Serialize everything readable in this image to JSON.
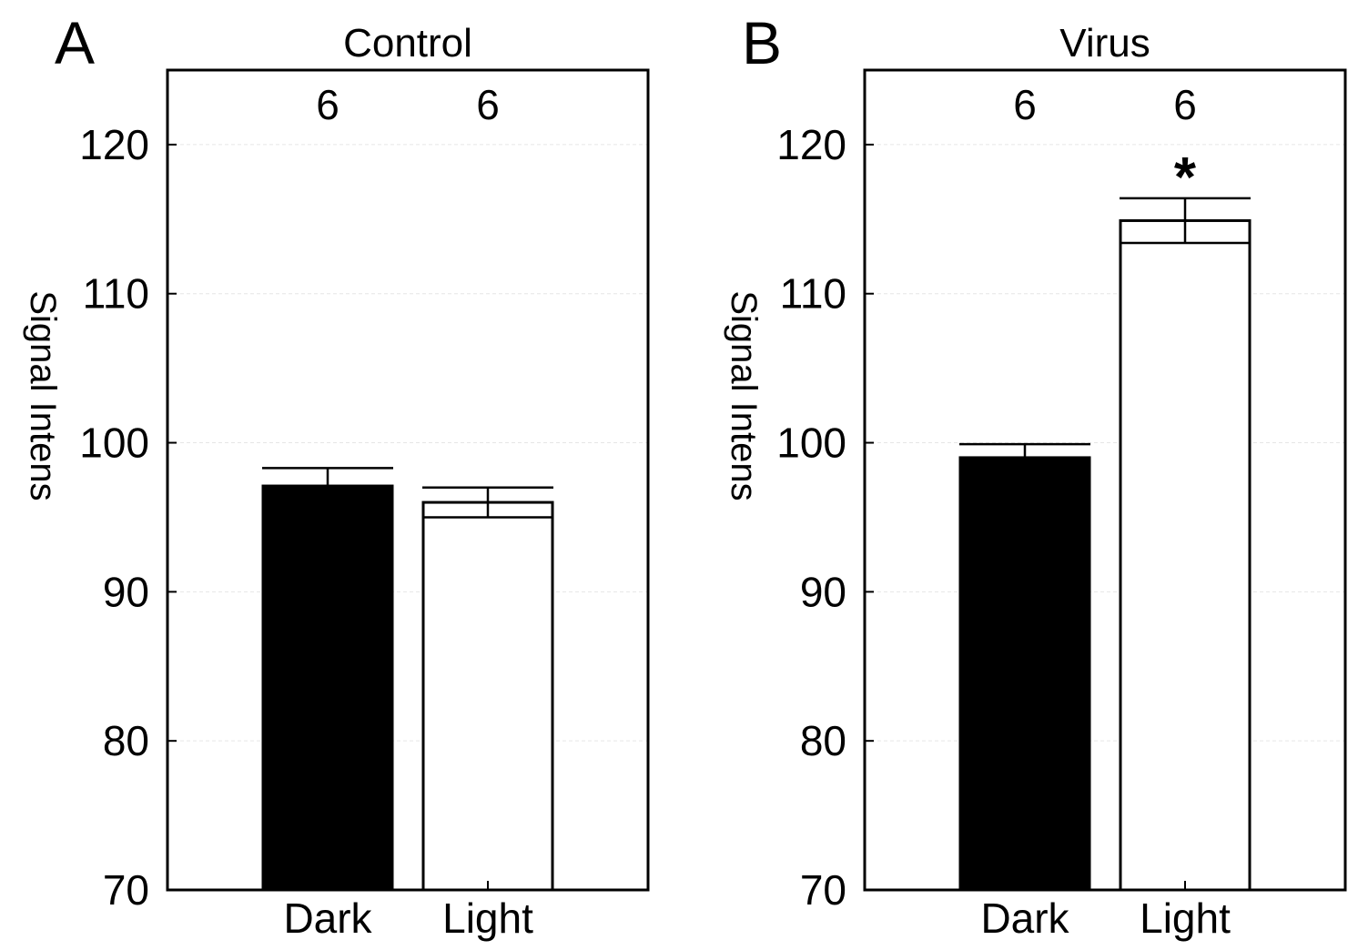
{
  "chart_data": [
    {
      "type": "bar",
      "panel_label": "A",
      "title": "Control",
      "ylabel": "Signal Intens",
      "xlabel": "",
      "ylim": [
        70,
        125
      ],
      "yticks": [
        70,
        80,
        90,
        100,
        110,
        120
      ],
      "grid": true,
      "categories": [
        "Dark",
        "Light"
      ],
      "values": [
        97.1,
        96.0
      ],
      "errors": [
        1.2,
        1.0
      ],
      "n": [
        "6",
        "6"
      ],
      "significance": [
        "",
        ""
      ],
      "bar_colors": [
        "#000000",
        "#ffffff"
      ]
    },
    {
      "type": "bar",
      "panel_label": "B",
      "title": "Virus",
      "ylabel": "Signal Intens",
      "xlabel": "",
      "ylim": [
        70,
        125
      ],
      "yticks": [
        70,
        80,
        90,
        100,
        110,
        120
      ],
      "grid": true,
      "categories": [
        "Dark",
        "Light"
      ],
      "values": [
        99.0,
        114.9
      ],
      "errors": [
        0.9,
        1.5
      ],
      "n": [
        "6",
        "6"
      ],
      "significance": [
        "",
        "*"
      ],
      "bar_colors": [
        "#000000",
        "#ffffff"
      ]
    }
  ]
}
